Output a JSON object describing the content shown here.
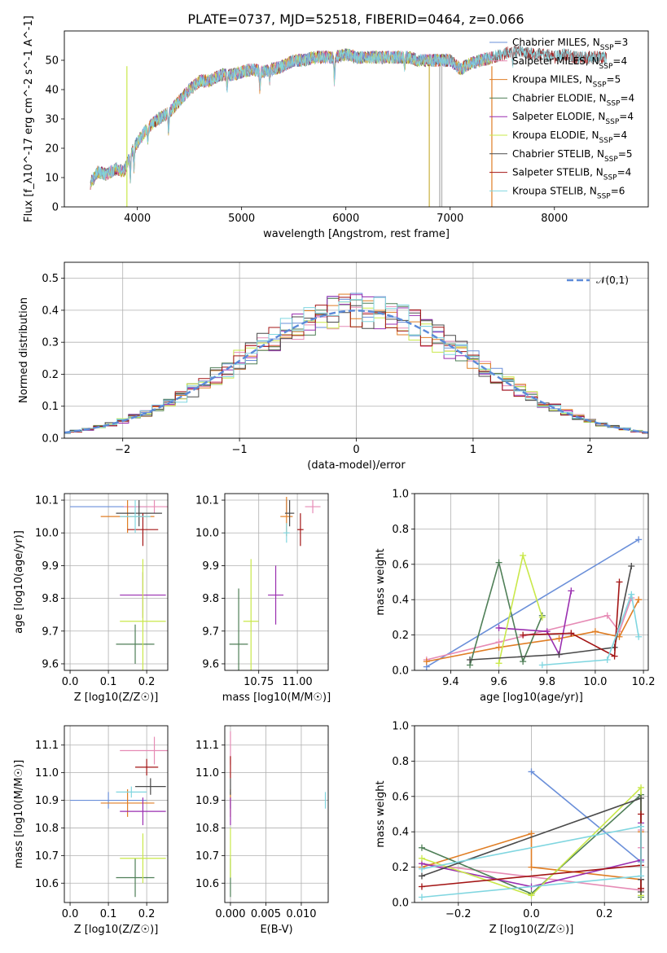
{
  "title": "PLATE=0737, MJD=52518, FIBERID=0464, z=0.066",
  "colors": {
    "chabrier_miles": "#6a8fd9",
    "salpeter_miles": "#e68bb5",
    "kroupa_miles": "#e07e25",
    "chabrier_elodie": "#4f7f57",
    "salpeter_elodie": "#9a2fb0",
    "kroupa_elodie": "#c9e84a",
    "chabrier_stelib": "#4a4a4a",
    "salpeter_stelib": "#a31515",
    "kroupa_stelib": "#80d6e0",
    "normal_curve": "#5b8ad8",
    "grid": "#b0b0b0"
  },
  "chart_data": [
    {
      "id": "spectrum",
      "type": "line",
      "title": "PLATE=0737, MJD=52518, FIBERID=0464, z=0.066",
      "xlabel": "wavelength [Angstrom, rest frame]",
      "ylabel": "Flux [f_λ10^-17 erg cm^-2 s^-1 A^-1]",
      "xlim": [
        3300,
        8900
      ],
      "ylim": [
        0,
        60
      ],
      "xticks": [
        "4000",
        "5000",
        "6000",
        "7000",
        "8000"
      ],
      "yticks": [
        "0",
        "10",
        "20",
        "30",
        "40",
        "50"
      ],
      "grid": false,
      "legend_position": "upper-right",
      "continuum": [
        [
          3550,
          8
        ],
        [
          3620,
          12
        ],
        [
          3700,
          11
        ],
        [
          3800,
          13
        ],
        [
          3870,
          12
        ],
        [
          3950,
          19
        ],
        [
          4000,
          22
        ],
        [
          4100,
          27
        ],
        [
          4200,
          30
        ],
        [
          4300,
          32
        ],
        [
          4400,
          36
        ],
        [
          4500,
          40
        ],
        [
          4600,
          43
        ],
        [
          4700,
          43
        ],
        [
          4800,
          45
        ],
        [
          4900,
          45
        ],
        [
          5000,
          46
        ],
        [
          5100,
          47
        ],
        [
          5200,
          46
        ],
        [
          5300,
          47
        ],
        [
          5400,
          48
        ],
        [
          5500,
          50
        ],
        [
          5600,
          50
        ],
        [
          5700,
          51
        ],
        [
          5800,
          51
        ],
        [
          5900,
          51
        ],
        [
          6000,
          52
        ],
        [
          6100,
          51
        ],
        [
          6200,
          51
        ],
        [
          6300,
          51
        ],
        [
          6400,
          51
        ],
        [
          6500,
          51
        ],
        [
          6600,
          51
        ],
        [
          6700,
          50
        ],
        [
          6800,
          50
        ],
        [
          6900,
          50
        ],
        [
          7000,
          50
        ],
        [
          7100,
          47
        ],
        [
          7200,
          49
        ],
        [
          7300,
          50
        ],
        [
          7400,
          51
        ],
        [
          7500,
          52
        ],
        [
          7600,
          53
        ],
        [
          7700,
          53
        ],
        [
          7800,
          52
        ],
        [
          7900,
          52
        ],
        [
          8000,
          51
        ],
        [
          8100,
          52
        ],
        [
          8200,
          51
        ],
        [
          8300,
          51
        ],
        [
          8400,
          51
        ],
        [
          8500,
          51
        ]
      ],
      "series": [
        {
          "name": "Chabrier MILES",
          "nssp": "3",
          "color": "#6a8fd9"
        },
        {
          "name": "Salpeter MILES",
          "nssp": "4",
          "color": "#e68bb5"
        },
        {
          "name": "Kroupa MILES",
          "nssp": "5",
          "color": "#e07e25"
        },
        {
          "name": "Chabrier ELODIE",
          "nssp": "4",
          "color": "#4f7f57"
        },
        {
          "name": "Salpeter ELODIE",
          "nssp": "4",
          "color": "#9a2fb0"
        },
        {
          "name": "Kroupa ELODIE",
          "nssp": "4",
          "color": "#c9e84a"
        },
        {
          "name": "Chabrier STELIB",
          "nssp": "5",
          "color": "#4a4a4a"
        },
        {
          "name": "Salpeter STELIB",
          "nssp": "4",
          "color": "#a31515"
        },
        {
          "name": "Kroupa STELIB",
          "nssp": "6",
          "color": "#80d6e0"
        }
      ]
    },
    {
      "id": "residuals",
      "type": "line",
      "xlabel": "(data-model)/error",
      "ylabel": "Normed distribution",
      "xlim": [
        -2.5,
        2.5
      ],
      "ylim": [
        0,
        0.55
      ],
      "xticks": [
        "−2",
        "−1",
        "0",
        "1",
        "2"
      ],
      "yticks": [
        "0.0",
        "0.1",
        "0.2",
        "0.3",
        "0.4",
        "0.5"
      ],
      "grid": true,
      "legend_position": "upper-right",
      "normal_label": "𝒩(0,1)",
      "bin_width": 0.1
    },
    {
      "id": "age_vs_z",
      "type": "scatter",
      "xlabel": "Z [log10(Z/Z☉)]",
      "ylabel": "age  [log10(age/yr)]",
      "xlim": [
        -0.015,
        0.255
      ],
      "ylim": [
        9.58,
        10.12
      ],
      "xticks": [
        "0.0",
        "0.1",
        "0.2"
      ],
      "yticks": [
        "9.6",
        "9.7",
        "9.8",
        "9.9",
        "10.0",
        "10.1"
      ],
      "grid": true,
      "points": [
        {
          "series": "Chabrier MILES",
          "x": 0.1,
          "xerr": 0.1,
          "y": 10.08,
          "yerr": 0.0
        },
        {
          "series": "Salpeter MILES",
          "x": 0.22,
          "xerr": 0.08,
          "y": 10.08,
          "yerr": 0.02
        },
        {
          "series": "Kroupa MILES",
          "x": 0.15,
          "xerr": 0.07,
          "y": 10.05,
          "yerr": 0.05
        },
        {
          "series": "Chabrier ELODIE",
          "x": 0.17,
          "xerr": 0.05,
          "y": 9.66,
          "yerr": 0.06
        },
        {
          "series": "Salpeter ELODIE",
          "x": 0.19,
          "xerr": 0.06,
          "y": 9.81,
          "yerr": 0.07
        },
        {
          "series": "Kroupa ELODIE",
          "x": 0.19,
          "xerr": 0.06,
          "y": 9.73,
          "yerr": 0.19
        },
        {
          "series": "Chabrier STELIB",
          "x": 0.18,
          "xerr": 0.06,
          "y": 10.06,
          "yerr": 0.04
        },
        {
          "series": "Salpeter STELIB",
          "x": 0.19,
          "xerr": 0.04,
          "y": 10.01,
          "yerr": 0.05
        },
        {
          "series": "Kroupa STELIB",
          "x": 0.17,
          "xerr": 0.04,
          "y": 10.05,
          "yerr": 0.05
        }
      ]
    },
    {
      "id": "age_vs_mass",
      "type": "scatter",
      "xlabel": "mass [log10(M/M☉)]",
      "ylabel": "",
      "xlim": [
        10.53,
        11.2
      ],
      "ylim": [
        9.58,
        10.12
      ],
      "xticks": [
        "10.75",
        "11.00"
      ],
      "yticks": [
        "9.6",
        "9.7",
        "9.8",
        "9.9",
        "10.0",
        "10.1"
      ],
      "grid": true,
      "points": [
        {
          "series": "Chabrier MILES",
          "x": 10.93,
          "xerr": 0.0,
          "y": 10.08,
          "yerr": 0.02
        },
        {
          "series": "Salpeter MILES",
          "x": 11.1,
          "xerr": 0.05,
          "y": 10.08,
          "yerr": 0.02
        },
        {
          "series": "Kroupa MILES",
          "x": 10.93,
          "xerr": 0.04,
          "y": 10.05,
          "yerr": 0.06
        },
        {
          "series": "Chabrier ELODIE",
          "x": 10.62,
          "xerr": 0.06,
          "y": 9.66,
          "yerr": 0.17
        },
        {
          "series": "Salpeter ELODIE",
          "x": 10.86,
          "xerr": 0.05,
          "y": 9.81,
          "yerr": 0.09
        },
        {
          "series": "Kroupa ELODIE",
          "x": 10.7,
          "xerr": 0.05,
          "y": 9.73,
          "yerr": 0.19
        },
        {
          "series": "Chabrier STELIB",
          "x": 10.95,
          "xerr": 0.03,
          "y": 10.06,
          "yerr": 0.04
        },
        {
          "series": "Salpeter STELIB",
          "x": 11.02,
          "xerr": 0.02,
          "y": 10.01,
          "yerr": 0.05
        },
        {
          "series": "Kroupa STELIB",
          "x": 10.93,
          "xerr": 0.02,
          "y": 10.0,
          "yerr": 0.03
        }
      ]
    },
    {
      "id": "weight_vs_age",
      "type": "line",
      "xlabel": "age  [log10(age/yr)]",
      "ylabel": "mass weight",
      "xlim": [
        9.25,
        10.22
      ],
      "ylim": [
        0,
        1
      ],
      "xticks": [
        "9.4",
        "9.6",
        "9.8",
        "10.0",
        "10.2"
      ],
      "yticks": [
        "0.0",
        "0.2",
        "0.4",
        "0.6",
        "0.8",
        "1.0"
      ],
      "grid": true,
      "series": [
        {
          "name": "Chabrier MILES",
          "x": [
            9.3,
            10.18
          ],
          "y": [
            0.02,
            0.74
          ]
        },
        {
          "name": "Salpeter MILES",
          "x": [
            9.3,
            9.6,
            10.05,
            10.1,
            10.15
          ],
          "y": [
            0.06,
            0.16,
            0.31,
            0.22,
            0.41
          ]
        },
        {
          "name": "Kroupa MILES",
          "x": [
            9.3,
            9.6,
            9.85,
            10.0,
            10.1,
            10.18
          ],
          "y": [
            0.05,
            0.13,
            0.18,
            0.22,
            0.19,
            0.4
          ]
        },
        {
          "name": "Chabrier ELODIE",
          "x": [
            9.48,
            9.6,
            9.7,
            9.78
          ],
          "y": [
            0.03,
            0.61,
            0.05,
            0.31
          ]
        },
        {
          "name": "Salpeter ELODIE",
          "x": [
            9.6,
            9.8,
            9.85,
            9.9
          ],
          "y": [
            0.24,
            0.22,
            0.09,
            0.45
          ]
        },
        {
          "name": "Kroupa ELODIE",
          "x": [
            9.6,
            9.7,
            9.78
          ],
          "y": [
            0.04,
            0.65,
            0.3
          ]
        },
        {
          "name": "Chabrier STELIB",
          "x": [
            9.48,
            9.85,
            10.08,
            10.15
          ],
          "y": [
            0.06,
            0.09,
            0.13,
            0.59
          ]
        },
        {
          "name": "Salpeter STELIB",
          "x": [
            9.7,
            9.9,
            10.08,
            10.1
          ],
          "y": [
            0.2,
            0.21,
            0.08,
            0.5
          ]
        },
        {
          "name": "Kroupa STELIB",
          "x": [
            9.78,
            10.05,
            10.15,
            10.18
          ],
          "y": [
            0.03,
            0.06,
            0.43,
            0.19
          ]
        }
      ]
    },
    {
      "id": "mass_vs_z",
      "type": "scatter",
      "xlabel": "Z [log10(Z/Z☉)]",
      "ylabel": "mass [log10(M/M☉)]",
      "xlim": [
        -0.015,
        0.255
      ],
      "ylim": [
        10.53,
        11.17
      ],
      "xticks": [
        "0.0",
        "0.1",
        "0.2"
      ],
      "yticks": [
        "10.6",
        "10.7",
        "10.8",
        "10.9",
        "11.0",
        "11.1"
      ],
      "grid": true,
      "points": [
        {
          "series": "Chabrier MILES",
          "x": 0.1,
          "xerr": 0.1,
          "y": 10.9,
          "yerr": 0.03
        },
        {
          "series": "Salpeter MILES",
          "x": 0.22,
          "xerr": 0.09,
          "y": 11.08,
          "yerr": 0.05
        },
        {
          "series": "Kroupa MILES",
          "x": 0.15,
          "xerr": 0.07,
          "y": 10.89,
          "yerr": 0.05
        },
        {
          "series": "Chabrier ELODIE",
          "x": 0.17,
          "xerr": 0.05,
          "y": 10.62,
          "yerr": 0.07
        },
        {
          "series": "Salpeter ELODIE",
          "x": 0.19,
          "xerr": 0.06,
          "y": 10.86,
          "yerr": 0.05
        },
        {
          "series": "Kroupa ELODIE",
          "x": 0.19,
          "xerr": 0.06,
          "y": 10.69,
          "yerr": 0.09
        },
        {
          "series": "Chabrier STELIB",
          "x": 0.21,
          "xerr": 0.04,
          "y": 10.95,
          "yerr": 0.03
        },
        {
          "series": "Salpeter STELIB",
          "x": 0.2,
          "xerr": 0.03,
          "y": 11.02,
          "yerr": 0.03
        },
        {
          "series": "Kroupa STELIB",
          "x": 0.16,
          "xerr": 0.04,
          "y": 10.93,
          "yerr": 0.02
        }
      ]
    },
    {
      "id": "mass_vs_ebv",
      "type": "scatter",
      "xlabel": "E(B-V)",
      "ylabel": "",
      "xlim": [
        -0.0008,
        0.0138
      ],
      "ylim": [
        10.53,
        11.17
      ],
      "xticks": [
        "0.000",
        "0.005",
        "0.010"
      ],
      "yticks": [
        "10.6",
        "10.7",
        "10.8",
        "10.9",
        "11.0",
        "11.1"
      ],
      "grid": true,
      "points": [
        {
          "series": "Chabrier MILES",
          "x": 0.0,
          "xerr": 0.0,
          "y": 10.9,
          "yerr": 0.03
        },
        {
          "series": "Salpeter MILES",
          "x": 0.0,
          "xerr": 0.0,
          "y": 11.09,
          "yerr": 0.06
        },
        {
          "series": "Kroupa MILES",
          "x": 0.0,
          "xerr": 0.0,
          "y": 10.89,
          "yerr": 0.05
        },
        {
          "series": "Chabrier ELODIE",
          "x": 0.0,
          "xerr": 0.0,
          "y": 10.62,
          "yerr": 0.07
        },
        {
          "series": "Salpeter ELODIE",
          "x": 0.0,
          "xerr": 0.0,
          "y": 10.86,
          "yerr": 0.05
        },
        {
          "series": "Kroupa ELODIE",
          "x": 0.0,
          "xerr": 0.0,
          "y": 10.71,
          "yerr": 0.09
        },
        {
          "series": "Chabrier STELIB",
          "x": 0.0,
          "xerr": 0.0,
          "y": 10.95,
          "yerr": 0.03
        },
        {
          "series": "Salpeter STELIB",
          "x": 0.0,
          "xerr": 0.0,
          "y": 11.02,
          "yerr": 0.04
        },
        {
          "series": "Kroupa STELIB",
          "x": 0.0134,
          "xerr": 0.0,
          "y": 10.9,
          "yerr": 0.03
        }
      ]
    },
    {
      "id": "weight_vs_z",
      "type": "line",
      "xlabel": "Z [log10(Z/Z☉)]",
      "ylabel": "mass weight",
      "xlim": [
        -0.32,
        0.32
      ],
      "ylim": [
        0,
        1
      ],
      "xticks": [
        "−0.2",
        "0.0",
        "0.2"
      ],
      "yticks": [
        "0.0",
        "0.2",
        "0.4",
        "0.6",
        "0.8",
        "1.0"
      ],
      "grid": true,
      "series": [
        {
          "name": "Chabrier MILES",
          "x": [
            0.0,
            0.3
          ],
          "y": [
            0.74,
            0.23
          ]
        },
        {
          "name": "Salpeter MILES",
          "x": [
            -0.3,
            0.3,
            0.3,
            0.3
          ],
          "y": [
            0.22,
            0.07,
            0.31,
            0.41
          ]
        },
        {
          "name": "Kroupa MILES",
          "x": [
            -0.3,
            0.0,
            0.0,
            0.3,
            0.3
          ],
          "y": [
            0.2,
            0.39,
            0.2,
            0.13,
            0.4
          ]
        },
        {
          "name": "Chabrier ELODIE",
          "x": [
            -0.3,
            0.0,
            0.3,
            0.3
          ],
          "y": [
            0.31,
            0.05,
            0.61,
            0.03
          ]
        },
        {
          "name": "Salpeter ELODIE",
          "x": [
            -0.3,
            0.0,
            0.3,
            0.3
          ],
          "y": [
            0.22,
            0.09,
            0.24,
            0.45
          ]
        },
        {
          "name": "Kroupa ELODIE",
          "x": [
            -0.3,
            0.0,
            0.3,
            0.3
          ],
          "y": [
            0.25,
            0.04,
            0.65,
            0.04
          ]
        },
        {
          "name": "Chabrier STELIB",
          "x": [
            -0.3,
            0.3,
            0.3,
            0.3
          ],
          "y": [
            0.15,
            0.59,
            0.13,
            0.06
          ]
        },
        {
          "name": "Salpeter STELIB",
          "x": [
            -0.3,
            0.3,
            0.3,
            0.3
          ],
          "y": [
            0.09,
            0.21,
            0.5,
            0.08
          ]
        },
        {
          "name": "Kroupa STELIB",
          "x": [
            -0.3,
            0.3,
            0.3,
            -0.3
          ],
          "y": [
            0.03,
            0.15,
            0.43,
            0.19
          ]
        }
      ]
    }
  ]
}
